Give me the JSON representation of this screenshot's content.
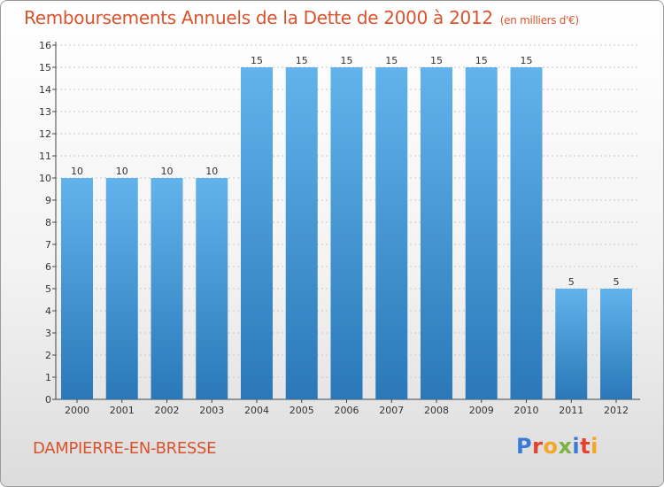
{
  "header": {
    "title": "Remboursements Annuels de la Dette de 2000 à 2012",
    "unit": "(en milliers d'€)"
  },
  "footer": {
    "commune": "DAMPIERRE-EN-BRESSE",
    "logo_text": "Proxiti",
    "logo_letters": [
      {
        "ch": "P",
        "color": "#3a7bd5"
      },
      {
        "ch": "r",
        "color": "#e5412d"
      },
      {
        "ch": "o",
        "color": "#f5a623"
      },
      {
        "ch": "x",
        "color": "#7cb342"
      },
      {
        "ch": "i",
        "color": "#3a7bd5"
      },
      {
        "ch": "t",
        "color": "#e5412d"
      },
      {
        "ch": "i",
        "color": "#f5a623"
      }
    ]
  },
  "colors": {
    "accent": "#d9532d",
    "bar_light": "#62b3ec",
    "bar_dark": "#2a78b8"
  },
  "chart_data": {
    "type": "bar",
    "title": "Remboursements Annuels de la Dette de 2000 à 2012",
    "subtitle": "(en milliers d'€)",
    "categories": [
      "2000",
      "2001",
      "2002",
      "2003",
      "2004",
      "2005",
      "2006",
      "2007",
      "2008",
      "2009",
      "2010",
      "2011",
      "2012"
    ],
    "values": [
      10,
      10,
      10,
      10,
      15,
      15,
      15,
      15,
      15,
      15,
      15,
      5,
      5
    ],
    "data_labels": [
      "10",
      "10",
      "10",
      "10",
      "15",
      "15",
      "15",
      "15",
      "15",
      "15",
      "15",
      "5",
      "5"
    ],
    "y_ticks": [
      "0",
      "1",
      "2",
      "3",
      "4",
      "5",
      "6",
      "7",
      "8",
      "9",
      "10",
      "11",
      "12",
      "13",
      "14",
      "15",
      "16"
    ],
    "ylim": [
      0,
      16
    ],
    "grid": true,
    "legend": "none"
  }
}
